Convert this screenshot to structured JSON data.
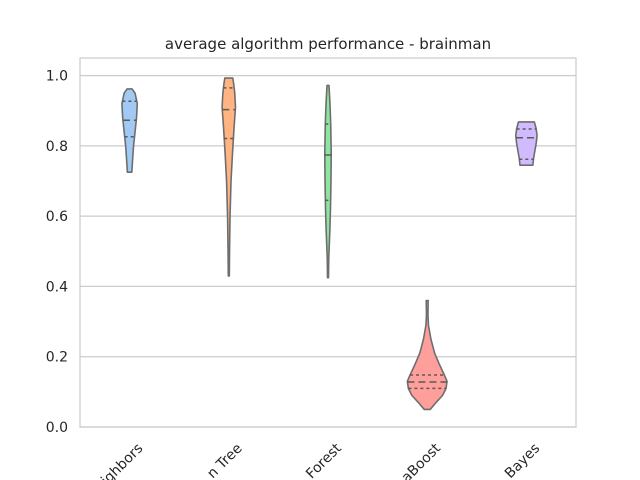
{
  "chart_data": {
    "type": "violin",
    "title": "average algorithm performance - brainman",
    "xlabel": "",
    "ylabel": "",
    "ylim": [
      0,
      1.05
    ],
    "yticks": [
      "0.0",
      "0.2",
      "0.4",
      "0.6",
      "0.8",
      "1.0"
    ],
    "ytick_values": [
      0.0,
      0.2,
      0.4,
      0.6,
      0.8,
      1.0
    ],
    "grid": "horizontal",
    "categories": [
      "ighbors",
      "n Tree",
      "Forest",
      "aBoost",
      "Bayes"
    ],
    "series": [
      {
        "color": "#a1c9f4",
        "min": 0.725,
        "max": 0.962,
        "quartiles": [
          0.826,
          0.873,
          0.927
        ],
        "profile": [
          [
            0.725,
            0.045
          ],
          [
            0.76,
            0.06
          ],
          [
            0.8,
            0.08
          ],
          [
            0.84,
            0.11
          ],
          [
            0.88,
            0.14
          ],
          [
            0.92,
            0.155
          ],
          [
            0.95,
            0.11
          ],
          [
            0.962,
            0.05
          ]
        ]
      },
      {
        "color": "#ffb482",
        "min": 0.43,
        "max": 0.993,
        "quartiles": [
          0.821,
          0.903,
          0.965
        ],
        "profile": [
          [
            0.43,
            0.01
          ],
          [
            0.5,
            0.015
          ],
          [
            0.6,
            0.025
          ],
          [
            0.7,
            0.045
          ],
          [
            0.78,
            0.075
          ],
          [
            0.85,
            0.105
          ],
          [
            0.91,
            0.135
          ],
          [
            0.95,
            0.12
          ],
          [
            0.975,
            0.1
          ],
          [
            0.993,
            0.08
          ]
        ]
      },
      {
        "color": "#8de5a1",
        "min": 0.425,
        "max": 0.972,
        "quartiles": [
          0.645,
          0.774,
          0.862
        ],
        "profile": [
          [
            0.425,
            0.01
          ],
          [
            0.48,
            0.015
          ],
          [
            0.55,
            0.035
          ],
          [
            0.62,
            0.05
          ],
          [
            0.7,
            0.06
          ],
          [
            0.78,
            0.065
          ],
          [
            0.86,
            0.055
          ],
          [
            0.92,
            0.04
          ],
          [
            0.972,
            0.02
          ]
        ]
      },
      {
        "color": "#ff9f9b",
        "min": 0.05,
        "max": 0.36,
        "quartiles": [
          0.11,
          0.128,
          0.148
        ],
        "profile": [
          [
            0.05,
            0.06
          ],
          [
            0.07,
            0.18
          ],
          [
            0.09,
            0.31
          ],
          [
            0.11,
            0.38
          ],
          [
            0.13,
            0.4
          ],
          [
            0.15,
            0.34
          ],
          [
            0.18,
            0.24
          ],
          [
            0.21,
            0.15
          ],
          [
            0.25,
            0.075
          ],
          [
            0.29,
            0.025
          ],
          [
            0.32,
            0.015
          ],
          [
            0.36,
            0.02
          ]
        ]
      },
      {
        "color": "#d0bbff",
        "min": 0.745,
        "max": 0.868,
        "quartiles": [
          0.762,
          0.823,
          0.848
        ],
        "profile": [
          [
            0.745,
            0.13
          ],
          [
            0.765,
            0.145
          ],
          [
            0.785,
            0.17
          ],
          [
            0.81,
            0.2
          ],
          [
            0.83,
            0.215
          ],
          [
            0.85,
            0.195
          ],
          [
            0.868,
            0.16
          ]
        ]
      }
    ]
  }
}
